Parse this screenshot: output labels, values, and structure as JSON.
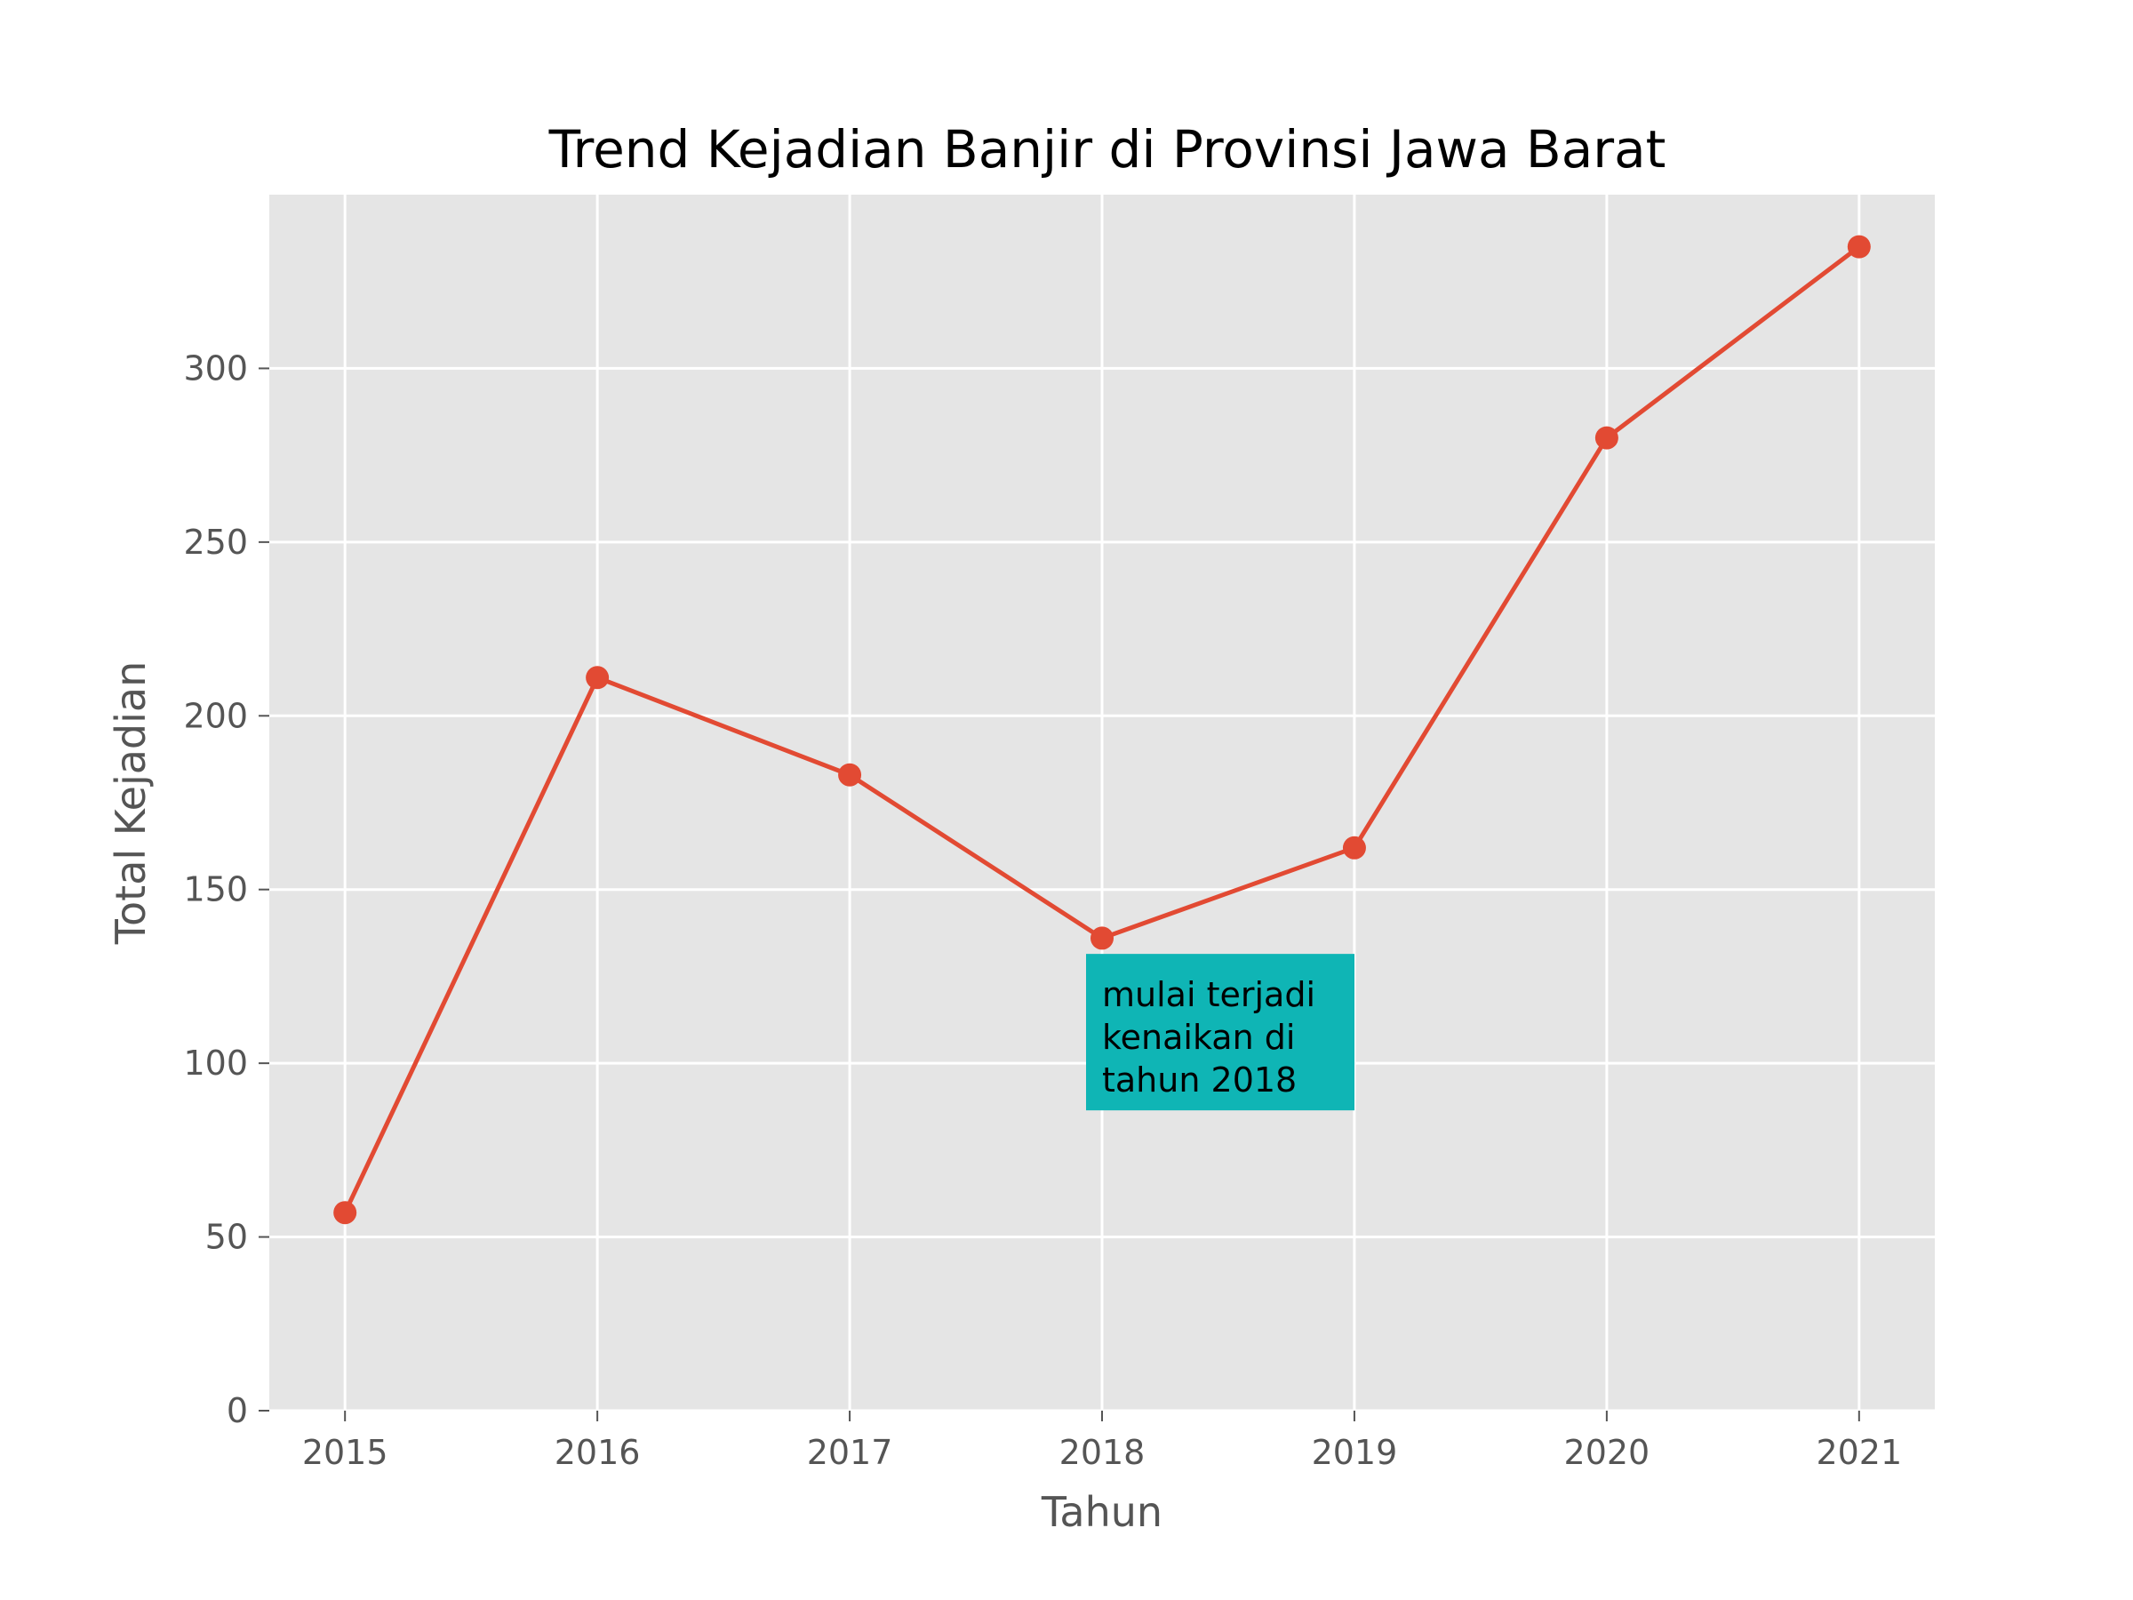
{
  "chart_data": {
    "type": "line",
    "title": "Trend Kejadian Banjir di Provinsi Jawa Barat",
    "xlabel": "Tahun",
    "ylabel": "Total Kejadian",
    "x": [
      2015,
      2016,
      2017,
      2018,
      2019,
      2020,
      2021
    ],
    "series": [
      {
        "values": [
          57,
          211,
          183,
          136,
          162,
          280,
          335
        ],
        "color": "#E24A33"
      }
    ],
    "xlim": [
      2014.7,
      2021.3
    ],
    "ylim": [
      0,
      350
    ],
    "yticks": [
      0,
      50,
      100,
      150,
      200,
      250,
      300
    ],
    "xticks": [
      2015,
      2016,
      2017,
      2018,
      2019,
      2020,
      2021
    ],
    "grid": true,
    "background_color": "#E5E5E5",
    "annotation": {
      "lines": [
        "mulai terjadi",
        "kenaikan di",
        "tahun 2018"
      ],
      "anchor_x": 2018,
      "anchor_y": 100,
      "box_color": "#0FB5B5"
    }
  }
}
